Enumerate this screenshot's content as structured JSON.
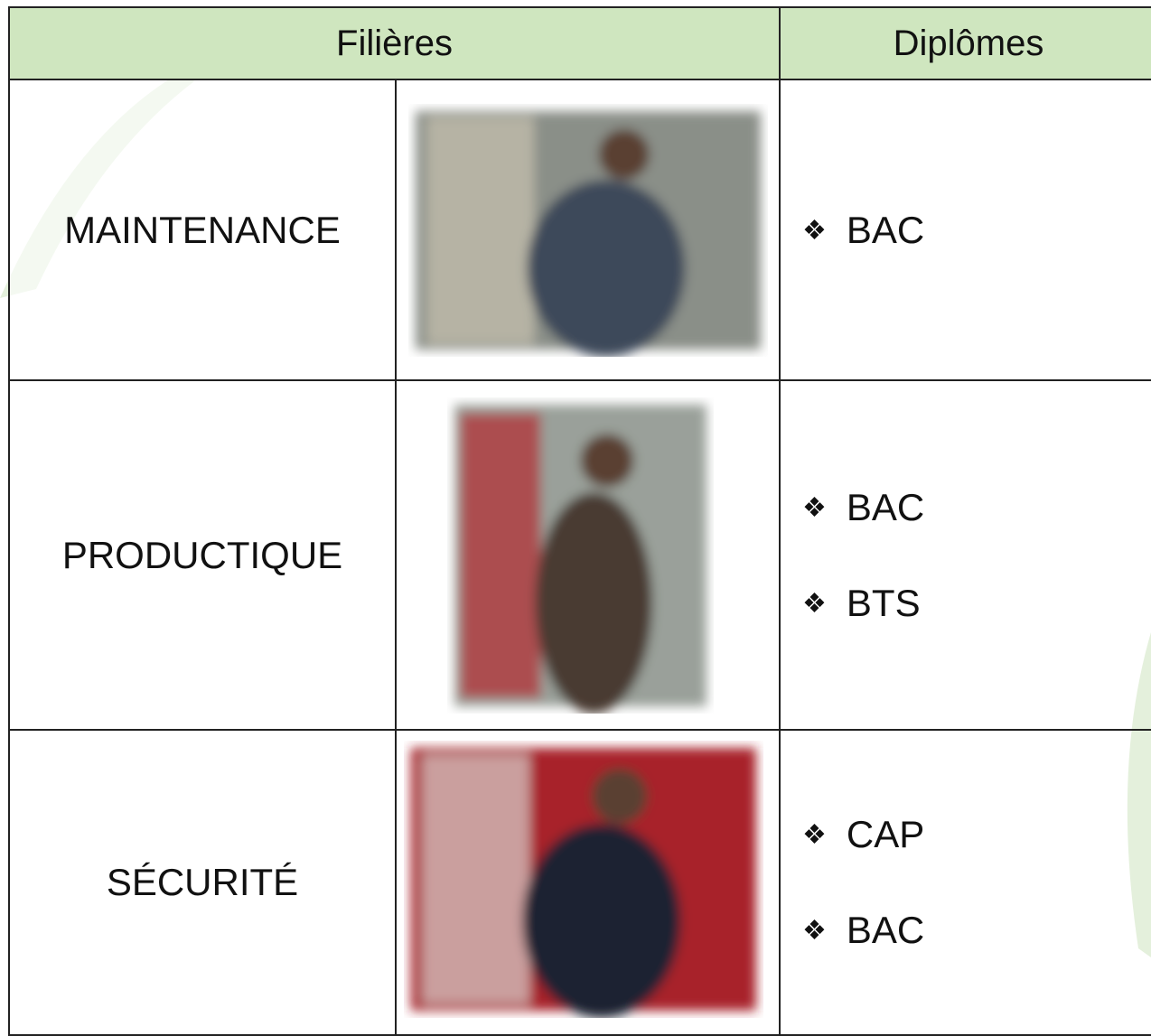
{
  "table": {
    "header": [
      "Filières",
      "Diplômes"
    ],
    "rows": [
      {
        "filiere": "MAINTENANCE",
        "diplomes": [
          "BAC"
        ]
      },
      {
        "filiere": "PRODUCTIQUE",
        "diplomes": [
          "BAC",
          "BTS"
        ]
      },
      {
        "filiere": "SÉCURITÉ",
        "diplomes": [
          "CAP",
          "BAC"
        ]
      }
    ]
  }
}
